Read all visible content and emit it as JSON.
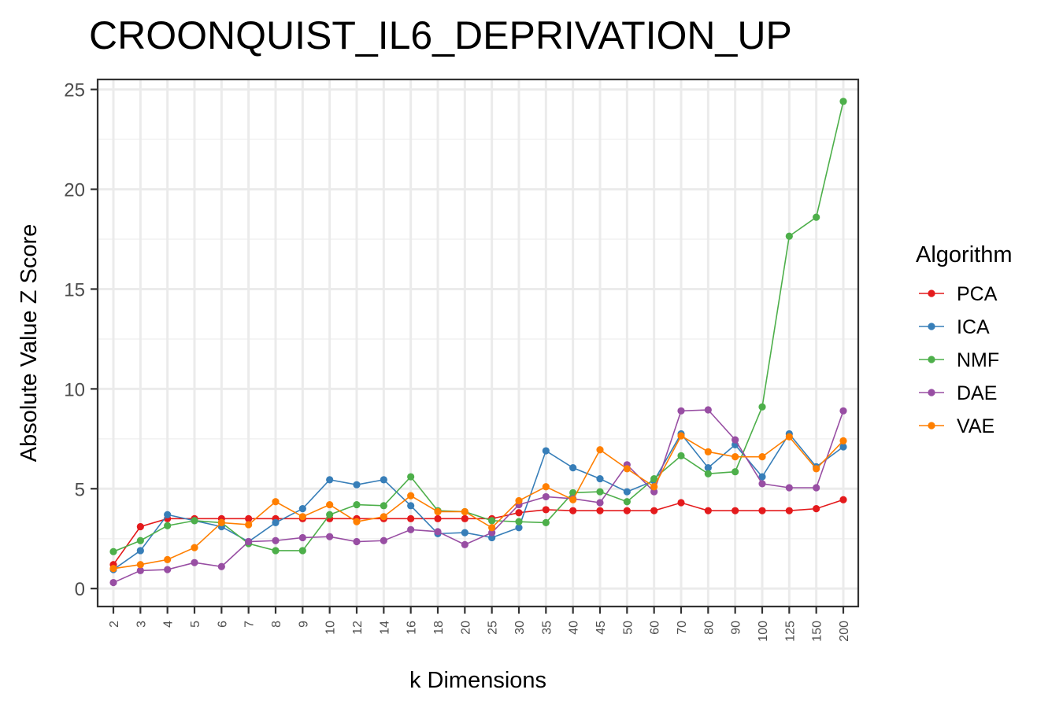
{
  "chart_data": {
    "type": "line",
    "title": "CROONQUIST_IL6_DEPRIVATION_UP",
    "xlabel": "k Dimensions",
    "ylabel": "Absolute Value Z Score",
    "categories": [
      "2",
      "3",
      "4",
      "5",
      "6",
      "7",
      "8",
      "9",
      "10",
      "12",
      "14",
      "16",
      "18",
      "20",
      "25",
      "30",
      "35",
      "40",
      "45",
      "50",
      "60",
      "70",
      "80",
      "90",
      "100",
      "125",
      "150",
      "200"
    ],
    "yticks": [
      "0",
      "5",
      "10",
      "15",
      "20",
      "25"
    ],
    "ylim": [
      -0.9,
      25.5
    ],
    "grid": true,
    "legend": {
      "title": "Algorithm",
      "position": "right"
    },
    "series": [
      {
        "name": "PCA",
        "color": "#E41A1C",
        "values": [
          1.2,
          3.1,
          3.5,
          3.5,
          3.5,
          3.5,
          3.5,
          3.5,
          3.5,
          3.5,
          3.5,
          3.5,
          3.5,
          3.5,
          3.5,
          3.8,
          3.95,
          3.9,
          3.9,
          3.9,
          3.9,
          4.3,
          3.9,
          3.9,
          3.9,
          3.9,
          4.0,
          4.45
        ]
      },
      {
        "name": "ICA",
        "color": "#377EB8",
        "values": [
          0.95,
          1.9,
          3.7,
          3.4,
          3.1,
          2.35,
          3.3,
          4.0,
          5.45,
          5.2,
          5.45,
          4.15,
          2.75,
          2.8,
          2.55,
          3.05,
          6.9,
          6.05,
          5.5,
          4.85,
          5.4,
          7.75,
          6.05,
          7.2,
          5.6,
          7.75,
          6.1,
          7.1
        ]
      },
      {
        "name": "NMF",
        "color": "#4DAF4A",
        "values": [
          1.85,
          2.4,
          3.15,
          3.4,
          3.3,
          2.25,
          1.9,
          1.9,
          3.7,
          4.2,
          4.15,
          5.6,
          3.9,
          3.85,
          3.4,
          3.35,
          3.3,
          4.8,
          4.85,
          4.35,
          5.5,
          6.65,
          5.75,
          5.85,
          9.1,
          17.65,
          18.6,
          24.4
        ]
      },
      {
        "name": "DAE",
        "color": "#984EA3",
        "values": [
          0.3,
          0.9,
          0.95,
          1.3,
          1.1,
          2.35,
          2.4,
          2.55,
          2.6,
          2.35,
          2.4,
          2.95,
          2.85,
          2.2,
          2.8,
          4.2,
          4.6,
          4.5,
          4.3,
          6.2,
          4.85,
          8.9,
          8.95,
          7.45,
          5.25,
          5.05,
          5.05,
          8.9
        ]
      },
      {
        "name": "VAE",
        "color": "#FF7F00",
        "values": [
          1.0,
          1.2,
          1.45,
          2.05,
          3.3,
          3.2,
          4.35,
          3.6,
          4.2,
          3.35,
          3.6,
          4.65,
          3.85,
          3.85,
          3.05,
          4.4,
          5.1,
          4.45,
          6.95,
          6.0,
          5.1,
          7.65,
          6.85,
          6.6,
          6.6,
          7.6,
          6.0,
          7.4
        ]
      }
    ]
  }
}
